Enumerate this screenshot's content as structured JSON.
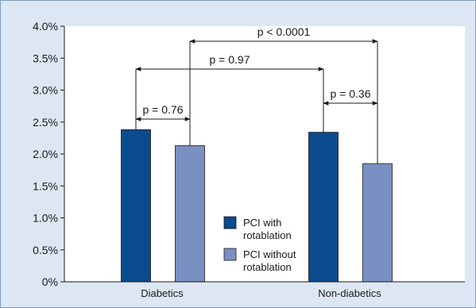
{
  "chart_data": {
    "type": "bar",
    "categories": [
      "Diabetics",
      "Non-diabetics"
    ],
    "series": [
      {
        "name": "PCI with rotablation",
        "values": [
          2.38,
          2.34
        ],
        "color": "#0b4a8d"
      },
      {
        "name": "PCI without rotablation",
        "values": [
          2.13,
          1.85
        ],
        "color": "#7b90c2"
      }
    ],
    "ylim": [
      0,
      4.0
    ],
    "yticks": [
      "0%",
      "0.5%",
      "1.0%",
      "1.5%",
      "2.0%",
      "2.5%",
      "3.0%",
      "3.5%",
      "4.0%"
    ],
    "ytick_values": [
      0,
      0.5,
      1.0,
      1.5,
      2.0,
      2.5,
      3.0,
      3.5,
      4.0
    ],
    "grid": false,
    "legend_position": "center-bottom",
    "legend_lines": [
      [
        "PCI with",
        "rotablation"
      ],
      [
        "PCI without",
        "rotablation"
      ]
    ],
    "annotations": [
      {
        "text": "p = 0.76",
        "between": "Diabetics: PCI with rotablation vs PCI without rotablation"
      },
      {
        "text": "p = 0.36",
        "between": "Non-diabetics: PCI with rotablation vs PCI without rotablation"
      },
      {
        "text": "p = 0.97",
        "between": "PCI with rotablation: Diabetics vs Non-diabetics"
      },
      {
        "text": "p < 0.0001",
        "between": "PCI without rotablation: Diabetics vs Non-diabetics"
      }
    ],
    "colors": {
      "background": "#dde7f3",
      "plot_area": "#ffffff",
      "border": "#7f9bbf"
    }
  }
}
